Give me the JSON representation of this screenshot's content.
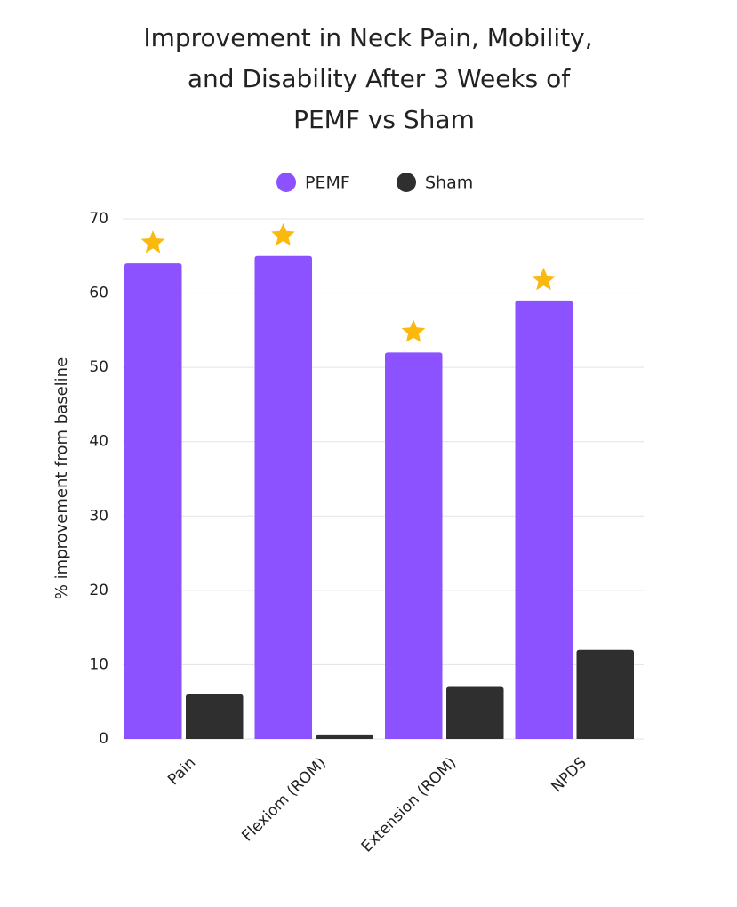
{
  "chart_data": {
    "type": "bar",
    "title": [
      "Improvement in Neck Pain, Mobility,",
      "and Disability After 3 Weeks of",
      "PEMF vs Sham"
    ],
    "y_label": "% improvement from baseline",
    "categories": [
      "Pain",
      "Flexiom (ROM)",
      "Extension (ROM)",
      "NPDS"
    ],
    "series": [
      {
        "name": "PEMF",
        "color": "#8c52ff",
        "values": [
          64,
          65,
          52,
          59
        ]
      },
      {
        "name": "Sham",
        "color": "#2f2f2f",
        "values": [
          6,
          0.5,
          7,
          12
        ]
      }
    ],
    "ylim": [
      0,
      70
    ],
    "yticks": [
      0,
      10,
      20,
      30,
      40,
      50,
      60,
      70
    ],
    "grid": true,
    "legend": "top",
    "star_color": "#fbb80f"
  }
}
